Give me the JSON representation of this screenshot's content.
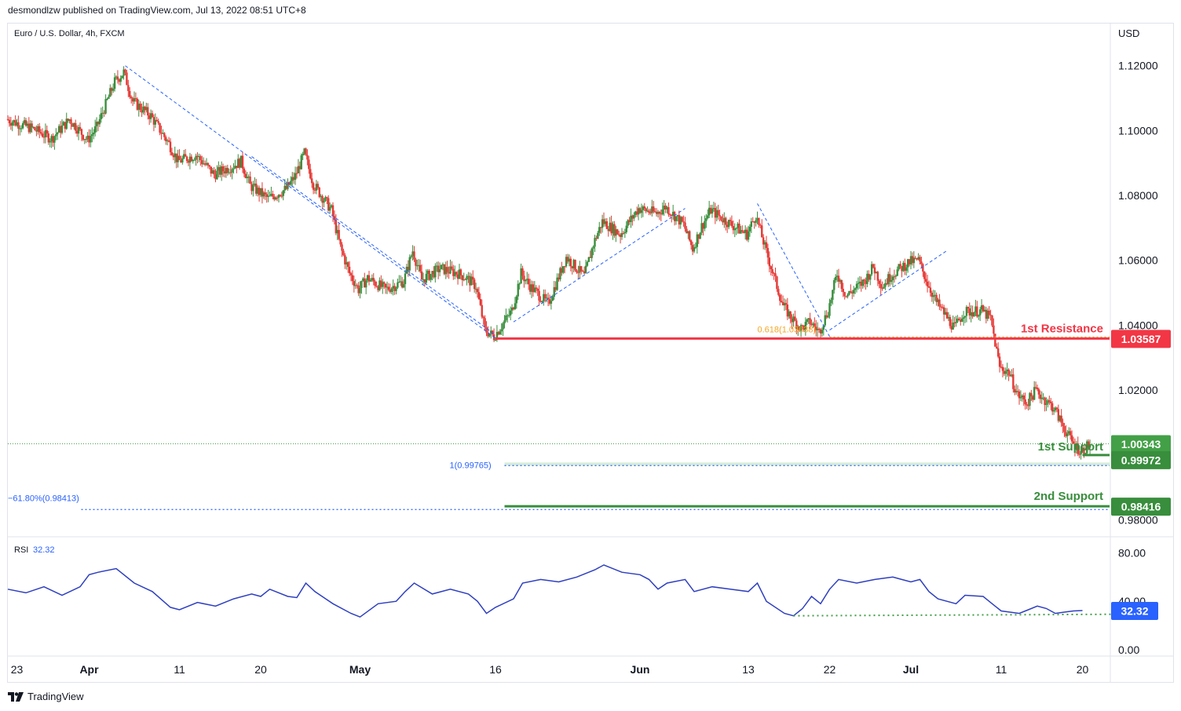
{
  "header": {
    "published": "desmondlzw published on TradingView.com, Jul 13, 2022 08:51 UTC+8"
  },
  "footer": {
    "brand": "TradingView"
  },
  "chart_data": {
    "type": "candlestick",
    "symbol_label": "Euro / U.S. Dollar, 4h, FXCM",
    "currency": "USD",
    "y_ticks": [
      "1.12000",
      "1.10000",
      "1.08000",
      "1.06000",
      "1.04000",
      "1.02000",
      "0.98000"
    ],
    "y_tick_values": [
      1.12,
      1.1,
      1.08,
      1.06,
      1.04,
      1.02,
      0.98
    ],
    "ylim": [
      0.975,
      1.133
    ],
    "x_ticks": [
      "23",
      "Apr",
      "11",
      "20",
      "May",
      "16",
      "Jun",
      "13",
      "22",
      "Jul",
      "11",
      "20"
    ],
    "x_tick_days": [
      -8,
      0,
      10,
      19,
      30,
      45,
      61,
      73,
      82,
      91,
      101,
      110
    ],
    "date_range_days": [
      -9,
      113
    ],
    "price_path": [
      [
        -9,
        1.1035
      ],
      [
        -6,
        1.1005
      ],
      [
        -4,
        1.0975
      ],
      [
        -2,
        1.1035
      ],
      [
        0,
        1.097
      ],
      [
        1,
        1.101
      ],
      [
        3,
        1.115
      ],
      [
        4,
        1.118
      ],
      [
        5,
        1.109
      ],
      [
        7,
        1.1045
      ],
      [
        9,
        1.096
      ],
      [
        10,
        1.0905
      ],
      [
        12,
        1.0925
      ],
      [
        14,
        1.0865
      ],
      [
        16,
        1.089
      ],
      [
        17,
        1.0905
      ],
      [
        18,
        1.083
      ],
      [
        20,
        1.079
      ],
      [
        22,
        1.082
      ],
      [
        23,
        1.086
      ],
      [
        24,
        1.093
      ],
      [
        25,
        1.0835
      ],
      [
        27,
        1.0755
      ],
      [
        28,
        1.064
      ],
      [
        29,
        1.056
      ],
      [
        30,
        1.051
      ],
      [
        31,
        1.0545
      ],
      [
        33,
        1.051
      ],
      [
        35,
        1.0535
      ],
      [
        36,
        1.063
      ],
      [
        37,
        1.054
      ],
      [
        39,
        1.0575
      ],
      [
        41,
        1.056
      ],
      [
        42,
        1.0545
      ],
      [
        43,
        1.052
      ],
      [
        44,
        1.0385
      ],
      [
        45,
        1.0365
      ],
      [
        46,
        1.0405
      ],
      [
        47,
        1.0445
      ],
      [
        48,
        1.056
      ],
      [
        49,
        1.052
      ],
      [
        51,
        1.0465
      ],
      [
        53,
        1.061
      ],
      [
        55,
        1.055
      ],
      [
        56,
        1.065
      ],
      [
        57,
        1.072
      ],
      [
        59,
        1.068
      ],
      [
        61,
        1.076
      ],
      [
        63,
        1.0745
      ],
      [
        64,
        1.0765
      ],
      [
        66,
        1.071
      ],
      [
        67,
        1.0635
      ],
      [
        68,
        1.0705
      ],
      [
        69,
        1.0755
      ],
      [
        71,
        1.0715
      ],
      [
        73,
        1.068
      ],
      [
        74,
        1.074
      ],
      [
        75,
        1.064
      ],
      [
        77,
        1.046
      ],
      [
        78,
        1.042
      ],
      [
        79,
        1.039
      ],
      [
        80,
        1.041
      ],
      [
        81,
        1.038
      ],
      [
        82,
        1.0445
      ],
      [
        83,
        1.056
      ],
      [
        84,
        1.049
      ],
      [
        86,
        1.0535
      ],
      [
        87,
        1.058
      ],
      [
        88,
        1.052
      ],
      [
        89,
        1.0555
      ],
      [
        91,
        1.0595
      ],
      [
        92,
        1.06
      ],
      [
        93,
        1.053
      ],
      [
        94,
        1.047
      ],
      [
        95,
        1.043
      ],
      [
        96,
        1.039
      ],
      [
        97,
        1.044
      ],
      [
        99,
        1.0445
      ],
      [
        100,
        1.042
      ],
      [
        101,
        1.027
      ],
      [
        102,
        1.0255
      ],
      [
        103,
        1.0185
      ],
      [
        104,
        1.016
      ],
      [
        105,
        1.02
      ],
      [
        106,
        1.017
      ],
      [
        107,
        1.0145
      ],
      [
        108,
        1.009
      ],
      [
        109,
        1.004
      ],
      [
        110,
        1.001
      ],
      [
        111,
        1.0034
      ]
    ],
    "levels": [
      {
        "name": "1st Resistance",
        "value": 1.03587,
        "label": "1.03587",
        "color": "#f23645",
        "type": "resistance"
      },
      {
        "name": "1st Support",
        "value": 0.99972,
        "label": "0.99972",
        "color": "#388e3c",
        "type": "support"
      },
      {
        "name": "2nd Support",
        "value": 0.98416,
        "label": "0.98416",
        "color": "#388e3c",
        "type": "support"
      },
      {
        "name": "",
        "value": 1.00343,
        "label": "1.00343",
        "color": "#43a047",
        "type": "last_price"
      }
    ],
    "fib_labels": [
      {
        "text": "0.618(1.03638)",
        "value": 1.03638,
        "color": "#f5a623"
      },
      {
        "text": "1(0.99765)",
        "value": 0.99765,
        "color": "#2962ff"
      },
      {
        "text": "−61.80%(0.98413)",
        "value": 0.98413,
        "color": "#2962ff"
      }
    ],
    "dashed_lines": [
      {
        "from": [
          4,
          1.12
        ],
        "to": [
          45,
          1.036
        ]
      },
      {
        "from": [
          18,
          1.092
        ],
        "to": [
          45,
          1.037
        ]
      },
      {
        "from": [
          47,
          1.041
        ],
        "to": [
          66,
          1.076
        ]
      },
      {
        "from": [
          74,
          1.0775
        ],
        "to": [
          82,
          1.0365
        ]
      },
      {
        "from": [
          82,
          1.0385
        ],
        "to": [
          95,
          1.063
        ]
      }
    ],
    "rsi": {
      "label": "RSI",
      "value": "32.32",
      "y_ticks": [
        "80.00",
        "40.00",
        "0.00"
      ],
      "y_tick_values": [
        80,
        40,
        0
      ],
      "ylim": [
        -4,
        92
      ],
      "support_line": 28,
      "path": [
        [
          -9,
          50
        ],
        [
          -7,
          47
        ],
        [
          -5,
          52
        ],
        [
          -3,
          45
        ],
        [
          -1,
          52
        ],
        [
          0,
          62
        ],
        [
          1,
          64
        ],
        [
          3,
          67
        ],
        [
          5,
          55
        ],
        [
          7,
          48
        ],
        [
          9,
          35
        ],
        [
          10,
          33
        ],
        [
          12,
          39
        ],
        [
          14,
          36
        ],
        [
          16,
          42
        ],
        [
          18,
          46
        ],
        [
          19,
          44
        ],
        [
          20,
          50
        ],
        [
          22,
          44
        ],
        [
          23,
          43
        ],
        [
          24,
          55
        ],
        [
          25,
          48
        ],
        [
          27,
          38
        ],
        [
          29,
          30
        ],
        [
          30,
          27
        ],
        [
          32,
          38
        ],
        [
          34,
          40
        ],
        [
          35,
          48
        ],
        [
          36,
          55
        ],
        [
          38,
          46
        ],
        [
          40,
          50
        ],
        [
          42,
          46
        ],
        [
          43,
          40
        ],
        [
          44,
          30
        ],
        [
          45,
          35
        ],
        [
          47,
          42
        ],
        [
          48,
          55
        ],
        [
          50,
          58
        ],
        [
          52,
          56
        ],
        [
          54,
          60
        ],
        [
          56,
          66
        ],
        [
          57,
          70
        ],
        [
          59,
          64
        ],
        [
          61,
          62
        ],
        [
          62,
          58
        ],
        [
          63,
          50
        ],
        [
          64,
          55
        ],
        [
          66,
          58
        ],
        [
          67,
          48
        ],
        [
          69,
          52
        ],
        [
          71,
          50
        ],
        [
          73,
          48
        ],
        [
          74,
          55
        ],
        [
          75,
          40
        ],
        [
          77,
          30
        ],
        [
          78,
          28
        ],
        [
          79,
          34
        ],
        [
          80,
          44
        ],
        [
          81,
          38
        ],
        [
          82,
          50
        ],
        [
          83,
          58
        ],
        [
          85,
          55
        ],
        [
          87,
          58
        ],
        [
          89,
          60
        ],
        [
          91,
          56
        ],
        [
          92,
          58
        ],
        [
          93,
          48
        ],
        [
          94,
          42
        ],
        [
          96,
          38
        ],
        [
          97,
          45
        ],
        [
          99,
          44
        ],
        [
          100,
          38
        ],
        [
          101,
          32
        ],
        [
          103,
          30
        ],
        [
          104,
          33
        ],
        [
          105,
          36
        ],
        [
          106,
          34
        ],
        [
          107,
          30
        ],
        [
          108,
          31
        ],
        [
          109,
          32
        ],
        [
          110,
          32.32
        ]
      ]
    }
  }
}
